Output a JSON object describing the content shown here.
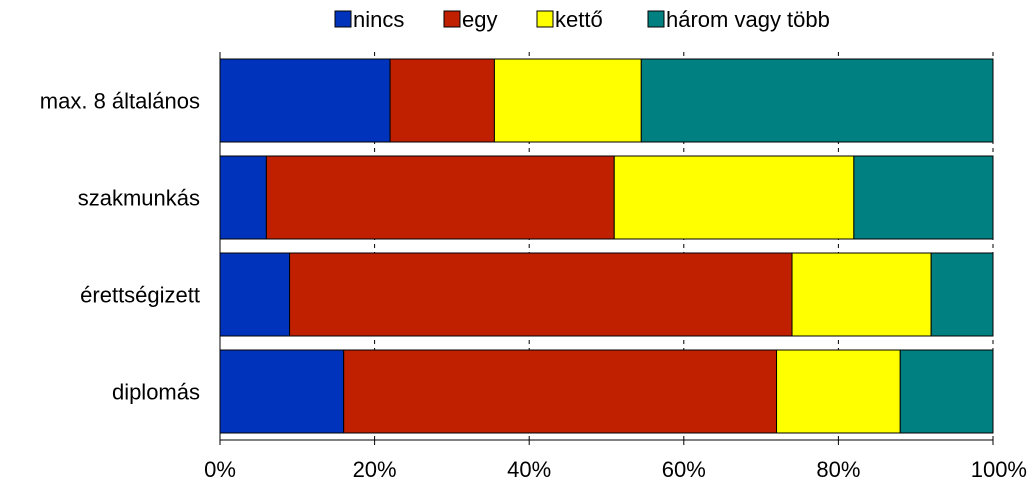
{
  "chart_data": {
    "type": "bar",
    "orientation": "horizontal",
    "stacked": "percent",
    "categories": [
      "max. 8 általános",
      "szakmunkás",
      "érettségizett",
      "diplomás"
    ],
    "series": [
      {
        "name": "nincs",
        "values": [
          22,
          6,
          9,
          16
        ]
      },
      {
        "name": "egy",
        "values": [
          13.5,
          45,
          65,
          56
        ]
      },
      {
        "name": "kettő",
        "values": [
          19,
          31,
          18,
          16
        ]
      },
      {
        "name": "három vagy több",
        "values": [
          45.5,
          18,
          8,
          12
        ]
      }
    ],
    "xlim": [
      0,
      100
    ],
    "xticks": [
      "0%",
      "20%",
      "40%",
      "60%",
      "80%",
      "100%"
    ],
    "grid": "vertical dashed at ticks",
    "legend_position": "top",
    "colors": [
      "#0033bb",
      "#c02000",
      "#ffff00",
      "#008080"
    ],
    "title": "",
    "xlabel": "",
    "ylabel": ""
  }
}
